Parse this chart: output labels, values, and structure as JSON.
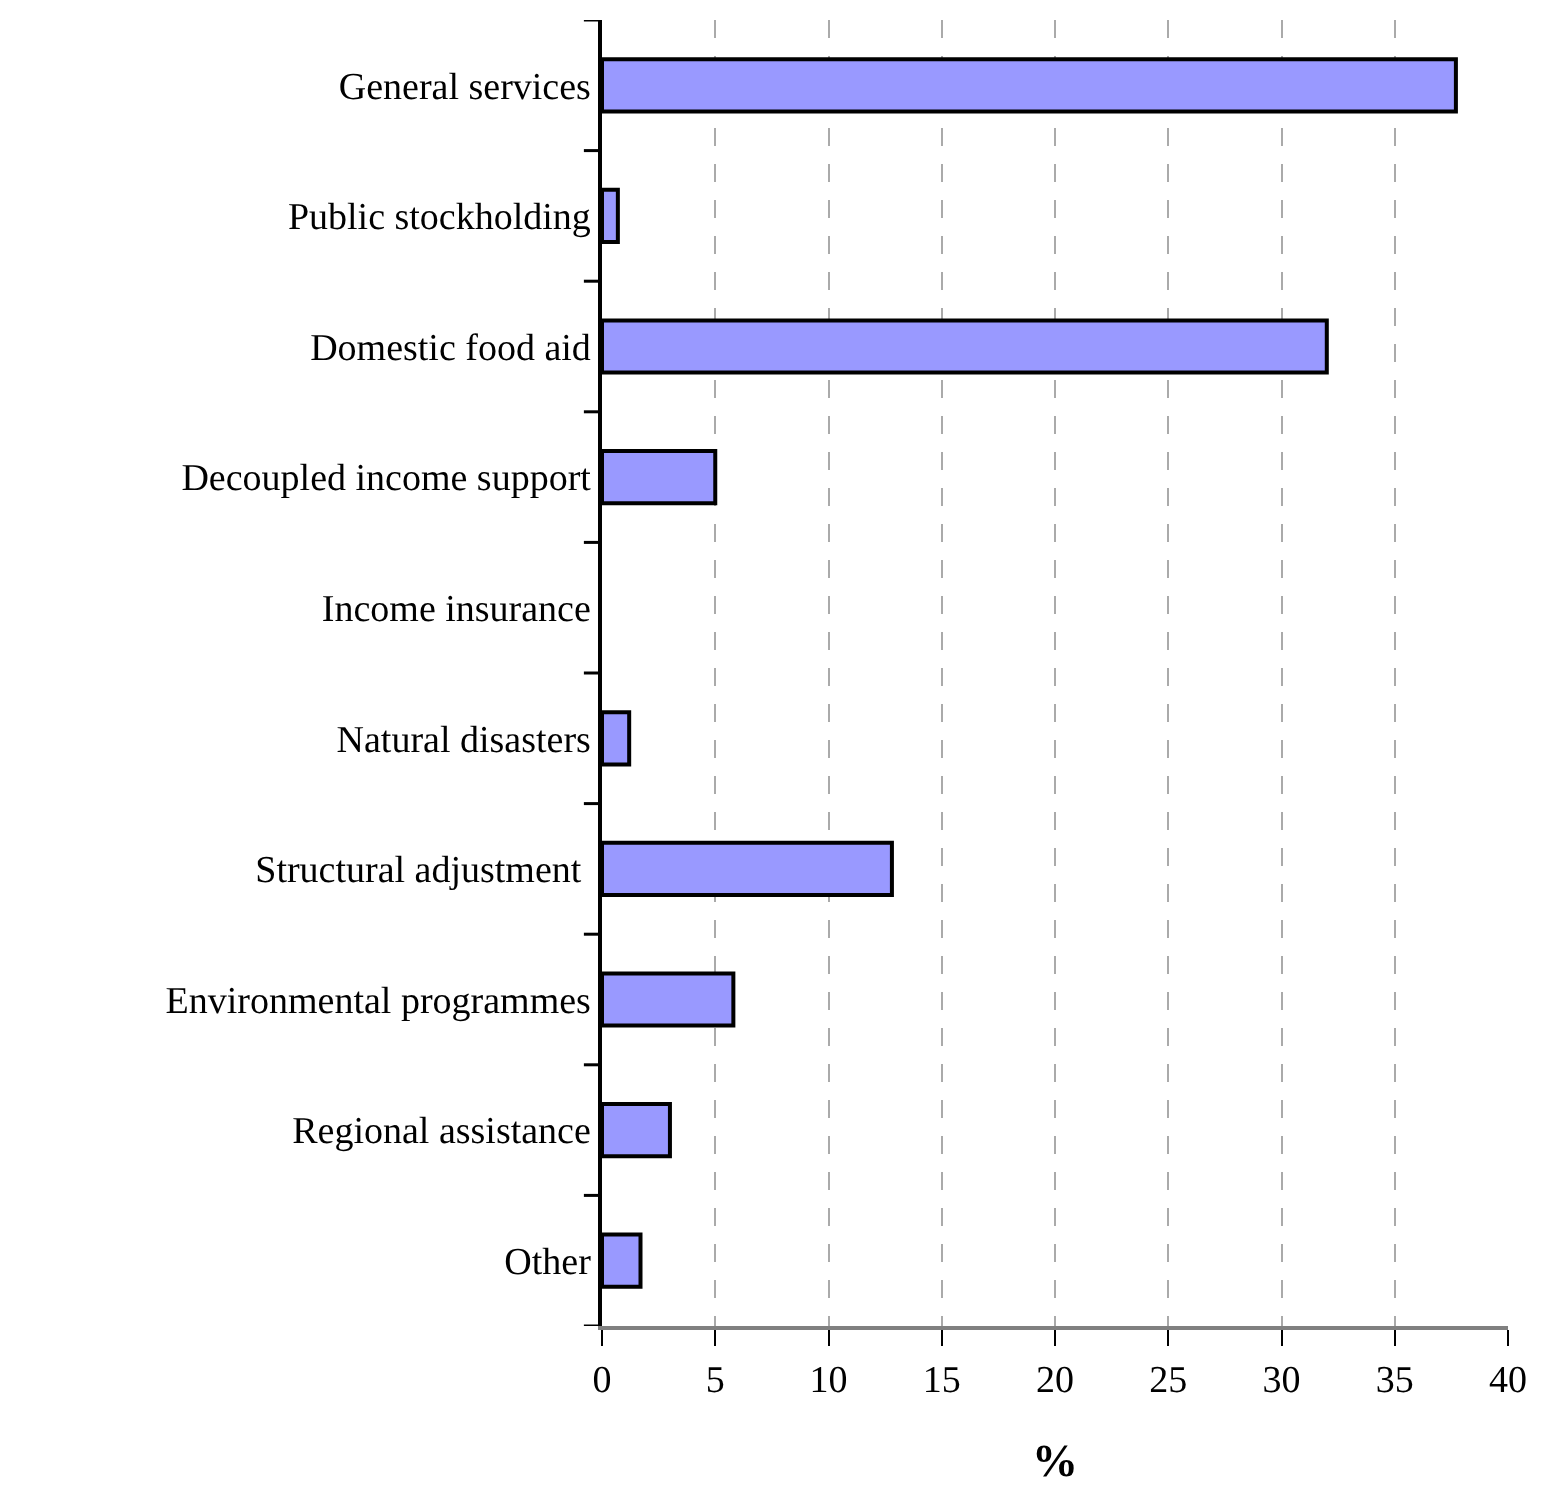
{
  "chart_data": {
    "type": "bar",
    "orientation": "horizontal",
    "xlabel": "%",
    "categories": [
      "General services",
      "Public stockholding",
      "Domestic food aid",
      "Decoupled income support",
      "Income insurance",
      "Natural disasters",
      "Structural adjustment ",
      "Environmental programmes",
      "Regional assistance",
      "Other"
    ],
    "values": [
      37.7,
      0.7,
      32.0,
      5.0,
      0,
      1.2,
      12.8,
      5.8,
      3.0,
      1.7
    ],
    "color": "#9999ff",
    "xlim": [
      0,
      40
    ],
    "xticks": [
      0,
      5,
      10,
      15,
      20,
      25,
      30,
      35,
      40
    ],
    "grid": "x",
    "legend": false
  }
}
